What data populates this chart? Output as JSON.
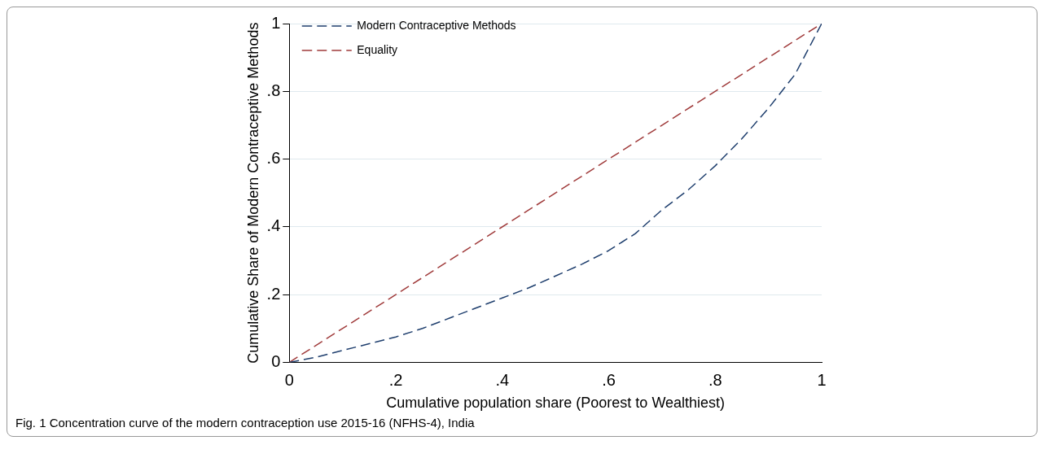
{
  "chart_data": {
    "type": "line",
    "xlabel": "Cumulative population share (Poorest to Wealthiest)",
    "ylabel": "Cumulative Share of Modern Contraceptive Methods",
    "annotations": [
      "Fig. 1  Concentration curve of the modern contraception use 2015-16 (NFHS-4), India"
    ],
    "xlim": [
      0,
      1
    ],
    "ylim": [
      0,
      1
    ],
    "xticks": [
      0,
      {
        "value": 0.2,
        "label": ".2"
      },
      {
        "value": 0.4,
        "label": ".4"
      },
      {
        "value": 0.6,
        "label": ".6"
      },
      {
        "value": 0.8,
        "label": ".8"
      },
      1
    ],
    "yticks": [
      0,
      {
        "value": 0.2,
        "label": ".2"
      },
      {
        "value": 0.4,
        "label": ".4"
      },
      {
        "value": 0.6,
        "label": ".6"
      },
      {
        "value": 0.8,
        "label": ".8"
      },
      1
    ],
    "grid": "y",
    "legend": "top left",
    "marker": "none",
    "series": [
      {
        "name": "Modern Contraceptive Methods",
        "color": "#1f3f6e",
        "line_style": "dashed",
        "x": [
          0,
          0.05,
          0.1,
          0.15,
          0.2,
          0.25,
          0.3,
          0.35,
          0.4,
          0.45,
          0.5,
          0.55,
          0.6,
          0.65,
          0.7,
          0.75,
          0.8,
          0.85,
          0.9,
          0.95,
          1
        ],
        "values": [
          0,
          0.015,
          0.035,
          0.055,
          0.075,
          0.1,
          0.13,
          0.16,
          0.19,
          0.22,
          0.255,
          0.29,
          0.33,
          0.38,
          0.45,
          0.51,
          0.58,
          0.66,
          0.75,
          0.85,
          1
        ]
      },
      {
        "name": "Equality",
        "color": "#a03b3b",
        "line_style": "dashed",
        "x": [
          0,
          1
        ],
        "values": [
          0,
          1
        ]
      }
    ]
  }
}
